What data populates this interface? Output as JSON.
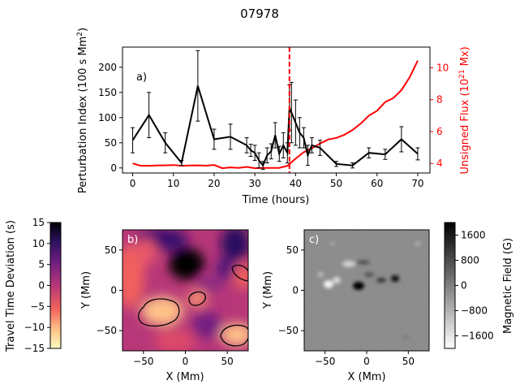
{
  "title": "07978",
  "colors": {
    "perturbation": "#000000",
    "flux": "#ff0000",
    "event_line": "#ff0000",
    "axis": "#000000"
  },
  "chart_data": [
    {
      "type": "line",
      "panel_label": "a)",
      "xlabel": "Time (hours)",
      "ylabel": "Perturbation Index (100 s Mm",
      "ylabel_sup": "2",
      "ylabel_end": ")",
      "y2label": "Unsigned Flux (10",
      "y2label_sup": "21",
      "y2label_end": " Mx)",
      "xlim": [
        -2.5,
        73
      ],
      "ylim": [
        -10,
        240
      ],
      "y2lim": [
        3.4,
        11.3
      ],
      "xticks": [
        0,
        10,
        20,
        30,
        40,
        50,
        60,
        70
      ],
      "yticks": [
        0,
        50,
        100,
        150,
        200
      ],
      "y2ticks": [
        4,
        6,
        8,
        10
      ],
      "event_x": 38.5,
      "series": [
        {
          "axis": "left",
          "x": [
            0,
            4,
            8,
            12,
            16,
            20,
            24,
            28,
            29,
            30,
            31,
            32,
            33,
            34,
            35,
            36,
            37,
            38,
            38.5,
            39,
            40,
            41,
            42,
            43,
            44,
            46,
            50,
            54,
            58,
            62,
            66,
            70
          ],
          "y": [
            55,
            105,
            50,
            10,
            163,
            57,
            62,
            45,
            35,
            30,
            15,
            5,
            25,
            33,
            65,
            28,
            45,
            30,
            120,
            110,
            90,
            70,
            60,
            25,
            45,
            40,
            8,
            5,
            30,
            27,
            57,
            28
          ],
          "err": [
            25,
            45,
            20,
            5,
            70,
            20,
            25,
            15,
            12,
            15,
            15,
            8,
            15,
            15,
            25,
            15,
            25,
            20,
            45,
            60,
            45,
            30,
            20,
            20,
            15,
            15,
            5,
            5,
            10,
            10,
            25,
            12
          ]
        },
        {
          "axis": "right",
          "x": [
            0,
            2,
            4,
            6,
            8,
            10,
            12,
            14,
            16,
            18,
            20,
            22,
            24,
            26,
            28,
            30,
            32,
            34,
            36,
            38,
            40,
            42,
            44,
            46,
            48,
            50,
            52,
            54,
            56,
            58,
            60,
            62,
            64,
            66,
            68,
            70
          ],
          "y": [
            4.0,
            3.85,
            3.85,
            3.87,
            3.88,
            3.9,
            3.85,
            3.87,
            3.88,
            3.86,
            3.9,
            3.7,
            3.75,
            3.72,
            3.78,
            3.7,
            3.72,
            3.72,
            3.72,
            3.85,
            4.3,
            4.7,
            4.95,
            5.25,
            5.5,
            5.6,
            5.8,
            6.1,
            6.5,
            7.0,
            7.3,
            7.85,
            8.1,
            8.6,
            9.4,
            10.45
          ]
        }
      ]
    },
    {
      "type": "heatmap",
      "panel_label": "b)",
      "xlabel": "X (Mm)",
      "ylabel": "Y (Mm)",
      "xlim": [
        -75,
        75
      ],
      "ylim": [
        -75,
        75
      ],
      "xticks": [
        -50,
        0,
        50
      ],
      "yticks": [
        -50,
        0,
        50
      ],
      "colorbar_label": "Travel Time Deviation (s)",
      "colorbar_ticks": [
        15,
        10,
        5,
        0,
        -5,
        -10,
        -15
      ],
      "clim": [
        -15,
        15
      ],
      "colormap": "magma",
      "contour_regions": [
        {
          "cx": -27,
          "cy": -30,
          "rx": 22,
          "ry": 14
        },
        {
          "cx": 12,
          "cy": -22,
          "rx": 10,
          "ry": 6
        },
        {
          "cx": 57,
          "cy": -58,
          "rx": 16,
          "ry": 10
        },
        {
          "cx": 67,
          "cy": 12,
          "rx": 10,
          "ry": 8
        }
      ]
    },
    {
      "type": "heatmap",
      "panel_label": "c)",
      "xlabel": "X (Mm)",
      "ylabel": "Y (Mm)",
      "xlim": [
        -75,
        75
      ],
      "ylim": [
        -75,
        75
      ],
      "xticks": [
        -50,
        0,
        50
      ],
      "yticks": [
        -50,
        0,
        50
      ],
      "colorbar_label": "Magnetic Field (G)",
      "colorbar_ticks": [
        1600,
        800,
        0,
        -800,
        -1600
      ],
      "clim": [
        -2000,
        2000
      ],
      "colormap": "gray"
    }
  ]
}
